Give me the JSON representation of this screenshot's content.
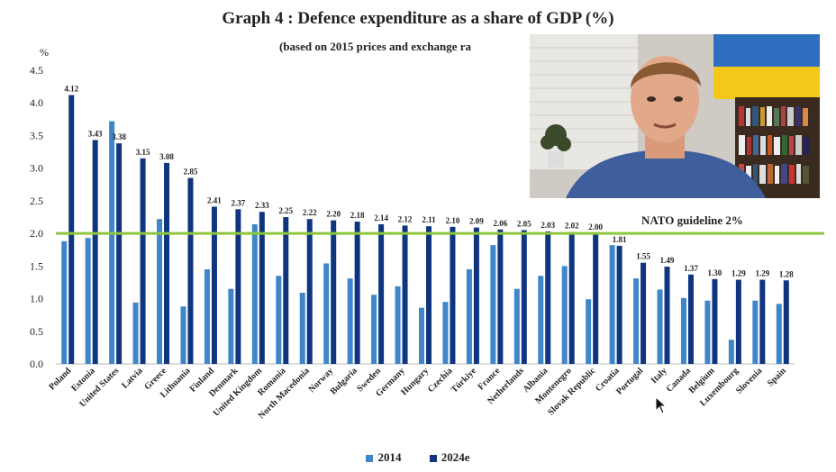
{
  "title": "Graph 4 : Defence expenditure as a share of GDP (%)",
  "subtitle": "(based on 2015 prices and exchange ra",
  "colors": {
    "series2014": "#3f86c9",
    "series2024": "#10357f",
    "guideline": "#8dc63f"
  },
  "chart_data": {
    "type": "bar",
    "ylabel": "%",
    "ylim": [
      0,
      4.5
    ],
    "yticks": [
      "0.0",
      "0.5",
      "1.0",
      "1.5",
      "2.0",
      "2.5",
      "3.0",
      "3.5",
      "4.0",
      "4.5"
    ],
    "legend_position": "bottom",
    "grid": false,
    "categories": [
      "Poland",
      "Estonia",
      "United States",
      "Latvia",
      "Greece",
      "Lithuania",
      "Finland",
      "Denmark",
      "United Kingdom",
      "Romania",
      "North Macedonia",
      "Norway",
      "Bulgaria",
      "Sweden",
      "Germany",
      "Hungary",
      "Czechia",
      "Türkiye",
      "France",
      "Netherlands",
      "Albania",
      "Montenegro",
      "Slovak Republic",
      "Croatia",
      "Portugal",
      "Italy",
      "Canada",
      "Belgium",
      "Luxembourg",
      "Slovenia",
      "Spain"
    ],
    "series": [
      {
        "name": "2014",
        "values": [
          1.88,
          1.93,
          3.72,
          0.94,
          2.22,
          0.88,
          1.45,
          1.15,
          2.14,
          1.35,
          1.09,
          1.54,
          1.31,
          1.06,
          1.19,
          0.86,
          0.95,
          1.45,
          1.82,
          1.15,
          1.35,
          1.5,
          0.99,
          1.82,
          1.31,
          1.14,
          1.01,
          0.97,
          0.37,
          0.97,
          0.92
        ]
      },
      {
        "name": "2024e",
        "values": [
          4.12,
          3.43,
          3.38,
          3.15,
          3.08,
          2.85,
          2.41,
          2.37,
          2.33,
          2.25,
          2.22,
          2.2,
          2.18,
          2.14,
          2.12,
          2.11,
          2.1,
          2.09,
          2.06,
          2.05,
          2.03,
          2.02,
          2.0,
          1.81,
          1.55,
          1.49,
          1.37,
          1.3,
          1.29,
          1.29,
          1.28
        ]
      }
    ],
    "data_labels_2024e": [
      "4.12",
      "3.43",
      "3.38",
      "3.15",
      "3.08",
      "2.85",
      "2.41",
      "2.37",
      "2.33",
      "2.25",
      "2.22",
      "2.20",
      "2.18",
      "2.14",
      "2.12",
      "2.11",
      "2.10",
      "2.09",
      "2.06",
      "2.05",
      "2.03",
      "2.02",
      "2.00",
      "1.81",
      "1.55",
      "1.49",
      "1.37",
      "1.30",
      "1.29",
      "1.29",
      "1.28"
    ],
    "reference_line": {
      "value": 2.0,
      "label": "NATO guideline 2%"
    }
  }
}
